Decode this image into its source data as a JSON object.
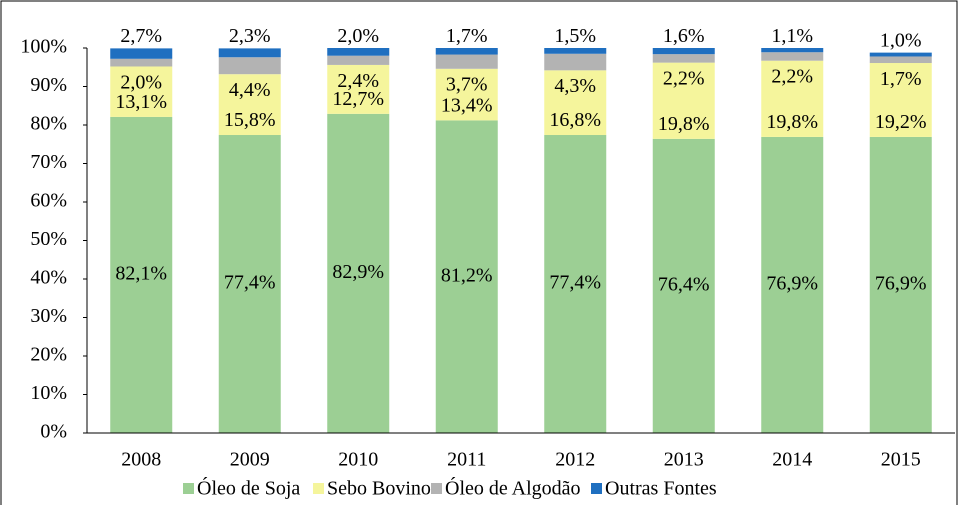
{
  "chart_data": {
    "type": "stacked_bar",
    "categories": [
      "2008",
      "2009",
      "2010",
      "2011",
      "2012",
      "2013",
      "2014",
      "2015"
    ],
    "series": [
      {
        "name": "Óleo de Soja",
        "color": "#9ccf94",
        "values": [
          82.1,
          77.4,
          82.9,
          81.2,
          77.4,
          76.4,
          76.9,
          76.9
        ],
        "value_labels": [
          "82,1%",
          "77,4%",
          "82,9%",
          "81,2%",
          "77,4%",
          "76,4%",
          "76,9%",
          "76,9%"
        ]
      },
      {
        "name": "Sebo Bovino",
        "color": "#f5f59c",
        "values": [
          13.1,
          15.8,
          12.7,
          13.4,
          16.8,
          19.8,
          19.8,
          19.2
        ],
        "value_labels": [
          "13,1%",
          "15,8%",
          "12,7%",
          "13,4%",
          "16,8%",
          "19,8%",
          "19,8%",
          "19,2%"
        ]
      },
      {
        "name": "Óleo de Algodão",
        "color": "#b3b3b3",
        "values": [
          2.0,
          4.4,
          2.4,
          3.7,
          4.3,
          2.2,
          2.2,
          1.7
        ],
        "value_labels": [
          "2,0%",
          "4,4%",
          "2,4%",
          "3,7%",
          "4,3%",
          "2,2%",
          "2,2%",
          "1,7%"
        ]
      },
      {
        "name": "Outras Fontes",
        "color": "#1f6fc0",
        "values": [
          2.7,
          2.3,
          2.0,
          1.7,
          1.5,
          1.6,
          1.1,
          1.0
        ],
        "value_labels": [
          "2,7%",
          "2,3%",
          "2,0%",
          "1,7%",
          "1,5%",
          "1,6%",
          "1,1%",
          "1,0%"
        ]
      }
    ],
    "ylim": [
      0,
      100
    ],
    "yticks": [
      {
        "value": 0,
        "label": "0%"
      },
      {
        "value": 10,
        "label": "10%"
      },
      {
        "value": 20,
        "label": "20%"
      },
      {
        "value": 30,
        "label": "30%"
      },
      {
        "value": 40,
        "label": "40%"
      },
      {
        "value": 50,
        "label": "50%"
      },
      {
        "value": 60,
        "label": "60%"
      },
      {
        "value": 70,
        "label": "70%"
      },
      {
        "value": 80,
        "label": "80%"
      },
      {
        "value": 90,
        "label": "90%"
      },
      {
        "value": 100,
        "label": "100%"
      }
    ],
    "legend": "bottom"
  }
}
